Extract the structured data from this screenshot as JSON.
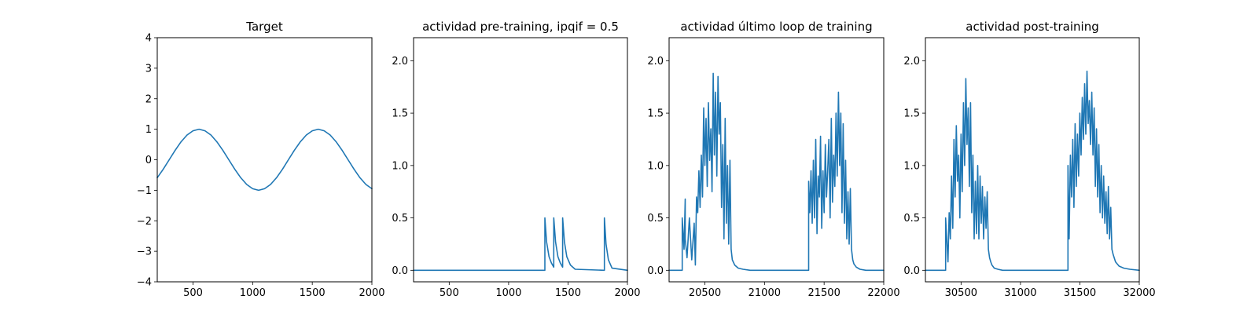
{
  "style": {
    "line_color": "#1f77b4",
    "background": "#ffffff"
  },
  "chart_data": [
    {
      "type": "line",
      "title": "Target",
      "xlim": [
        200,
        2000
      ],
      "ylim": [
        -4,
        4
      ],
      "xticks": [
        500,
        1000,
        1500,
        2000
      ],
      "yticks": [
        -4,
        -3,
        -2,
        -1,
        0,
        1,
        2,
        3,
        4
      ],
      "ytick_labels": [
        "−4",
        "−3",
        "−2",
        "−1",
        "0",
        "1",
        "2",
        "3",
        "4"
      ],
      "grid": false,
      "series": [
        {
          "x": [
            200,
            250,
            300,
            350,
            400,
            450,
            500,
            550,
            600,
            650,
            700,
            750,
            800,
            850,
            900,
            950,
            1000,
            1050,
            1100,
            1150,
            1200,
            1250,
            1300,
            1350,
            1400,
            1450,
            1500,
            1550,
            1600,
            1650,
            1700,
            1750,
            1800,
            1850,
            1900,
            1950,
            2000
          ],
          "y": [
            -0.59,
            -0.31,
            0.0,
            0.31,
            0.59,
            0.81,
            0.95,
            1.0,
            0.95,
            0.81,
            0.59,
            0.31,
            0.0,
            -0.31,
            -0.59,
            -0.81,
            -0.95,
            -1.0,
            -0.95,
            -0.81,
            -0.59,
            -0.31,
            0.0,
            0.31,
            0.59,
            0.81,
            0.95,
            1.0,
            0.95,
            0.81,
            0.59,
            0.31,
            0.0,
            -0.31,
            -0.59,
            -0.81,
            -0.95
          ]
        }
      ]
    },
    {
      "type": "line",
      "title": "actividad pre-training, ipqif = 0.5",
      "xlim": [
        200,
        2000
      ],
      "ylim": [
        -0.11,
        2.22
      ],
      "xticks": [
        500,
        1000,
        1500,
        2000
      ],
      "yticks": [
        0.0,
        0.5,
        1.0,
        1.5,
        2.0
      ],
      "ytick_labels": [
        "0.0",
        "0.5",
        "1.0",
        "1.5",
        "2.0"
      ],
      "grid": false,
      "series": [
        {
          "x": [
            200,
            1305,
            1305,
            1320,
            1340,
            1360,
            1380,
            1380,
            1395,
            1415,
            1435,
            1455,
            1455,
            1470,
            1490,
            1520,
            1560,
            1800,
            1806,
            1806,
            1820,
            1840,
            1870,
            2000
          ],
          "y": [
            0.0,
            0.0,
            0.5,
            0.27,
            0.13,
            0.07,
            0.03,
            0.5,
            0.27,
            0.13,
            0.07,
            0.03,
            0.5,
            0.27,
            0.13,
            0.05,
            0.01,
            0.0,
            0.0,
            0.5,
            0.25,
            0.1,
            0.02,
            0.0
          ]
        }
      ]
    },
    {
      "type": "line",
      "title": "actividad último loop de training",
      "xlim": [
        20200,
        22000
      ],
      "ylim": [
        -0.11,
        2.22
      ],
      "xticks": [
        20500,
        21000,
        21500,
        22000
      ],
      "yticks": [
        0.0,
        0.5,
        1.0,
        1.5,
        2.0
      ],
      "ytick_labels": [
        "0.0",
        "0.5",
        "1.0",
        "1.5",
        "2.0"
      ],
      "grid": false,
      "series": [
        {
          "x": [
            20200,
            20310,
            20310,
            20325,
            20335,
            20335,
            20350,
            20370,
            20390,
            20410,
            20420,
            20430,
            20440,
            20450,
            20460,
            20470,
            20480,
            20490,
            20500,
            20510,
            20520,
            20530,
            20540,
            20550,
            20560,
            20570,
            20580,
            20590,
            20600,
            20610,
            20620,
            20630,
            20640,
            20650,
            20660,
            20670,
            20680,
            20690,
            20700,
            20710,
            20720,
            20730,
            20750,
            20780,
            20820,
            20880,
            21000,
            21370,
            21370,
            21380,
            21390,
            21400,
            21410,
            21420,
            21430,
            21440,
            21450,
            21460,
            21470,
            21480,
            21490,
            21500,
            21510,
            21520,
            21530,
            21540,
            21550,
            21560,
            21570,
            21580,
            21590,
            21600,
            21610,
            21620,
            21630,
            21640,
            21650,
            21660,
            21670,
            21680,
            21690,
            21700,
            21710,
            21720,
            21730,
            21740,
            21750,
            21770,
            21800,
            21850,
            21900,
            22000
          ],
          "y": [
            0.0,
            0.0,
            0.5,
            0.2,
            0.68,
            0.3,
            0.12,
            0.5,
            0.1,
            0.45,
            0.05,
            0.7,
            0.55,
            0.95,
            0.6,
            1.1,
            0.7,
            1.55,
            1.0,
            1.45,
            0.8,
            1.6,
            1.05,
            1.35,
            0.75,
            1.88,
            1.1,
            1.7,
            0.9,
            1.85,
            1.3,
            1.6,
            0.6,
            1.2,
            0.3,
            1.45,
            0.45,
            1.0,
            0.25,
            1.05,
            0.2,
            0.1,
            0.05,
            0.02,
            0.01,
            0.0,
            0.0,
            0.0,
            0.85,
            0.55,
            0.95,
            0.45,
            1.05,
            0.5,
            1.25,
            0.35,
            0.9,
            0.7,
            1.28,
            0.4,
            0.95,
            0.55,
            1.2,
            0.7,
            0.95,
            1.25,
            0.5,
            1.45,
            0.65,
            1.1,
            0.8,
            1.5,
            0.9,
            1.7,
            1.0,
            1.5,
            0.55,
            1.4,
            0.45,
            1.05,
            0.3,
            0.75,
            0.25,
            0.78,
            0.2,
            0.1,
            0.06,
            0.03,
            0.01,
            0.0,
            0.0,
            0.0
          ]
        }
      ]
    },
    {
      "type": "line",
      "title": "actividad post-training",
      "xlim": [
        30200,
        32000
      ],
      "ylim": [
        -0.11,
        2.22
      ],
      "xticks": [
        30500,
        31000,
        31500,
        32000
      ],
      "yticks": [
        0.0,
        0.5,
        1.0,
        1.5,
        2.0
      ],
      "ytick_labels": [
        "0.0",
        "0.5",
        "1.0",
        "1.5",
        "2.0"
      ],
      "grid": false,
      "series": [
        {
          "x": [
            30200,
            30370,
            30370,
            30390,
            30400,
            30410,
            30420,
            30430,
            30440,
            30450,
            30460,
            30470,
            30480,
            30490,
            30500,
            30510,
            30520,
            30530,
            30540,
            30550,
            30560,
            30570,
            30580,
            30590,
            30600,
            30610,
            30620,
            30630,
            30640,
            30650,
            30660,
            30670,
            30680,
            30690,
            30700,
            30710,
            30720,
            30730,
            30740,
            30750,
            30760,
            30780,
            30810,
            30850,
            30900,
            31400,
            31400,
            31410,
            31420,
            31430,
            31440,
            31450,
            31460,
            31470,
            31480,
            31490,
            31500,
            31510,
            31520,
            31530,
            31540,
            31550,
            31560,
            31570,
            31580,
            31590,
            31600,
            31610,
            31620,
            31630,
            31640,
            31650,
            31660,
            31670,
            31680,
            31690,
            31700,
            31710,
            31720,
            31730,
            31740,
            31750,
            31760,
            31770,
            31780,
            31800,
            31830,
            31870,
            31920,
            32000
          ],
          "y": [
            0.0,
            0.0,
            0.5,
            0.08,
            0.55,
            0.3,
            0.9,
            0.4,
            1.25,
            0.7,
            1.38,
            0.85,
            1.1,
            0.5,
            1.3,
            0.75,
            1.6,
            1.0,
            1.83,
            1.2,
            1.55,
            0.8,
            1.6,
            0.55,
            1.1,
            0.3,
            0.85,
            0.35,
            1.0,
            0.3,
            0.9,
            0.45,
            0.8,
            0.3,
            0.7,
            0.4,
            0.75,
            0.2,
            0.12,
            0.08,
            0.05,
            0.02,
            0.01,
            0.0,
            0.0,
            0.0,
            1.0,
            0.3,
            1.1,
            0.7,
            1.25,
            0.6,
            1.4,
            0.8,
            1.3,
            0.9,
            1.5,
            1.1,
            1.65,
            1.25,
            1.78,
            1.3,
            1.9,
            1.4,
            1.62,
            1.2,
            1.7,
            1.1,
            1.55,
            0.8,
            1.35,
            0.7,
            1.2,
            0.55,
            1.0,
            0.5,
            0.9,
            0.45,
            0.75,
            0.35,
            0.8,
            0.3,
            0.6,
            0.2,
            0.15,
            0.08,
            0.04,
            0.02,
            0.01,
            0.0
          ]
        }
      ]
    }
  ]
}
